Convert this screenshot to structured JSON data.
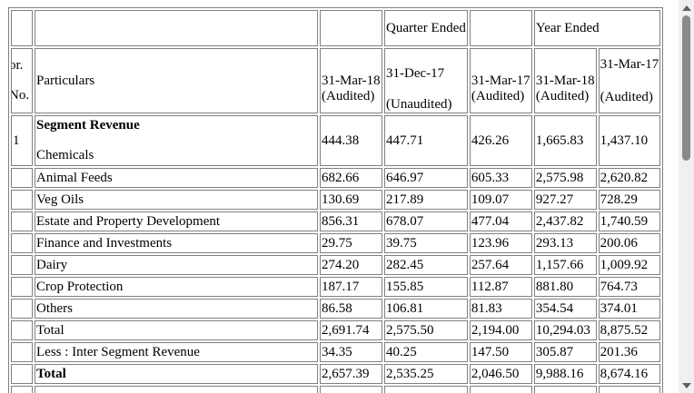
{
  "header": {
    "quarter_ended": "Quarter Ended",
    "year_ended": "Year Ended",
    "srno": [
      "or.",
      "No."
    ],
    "particulars": "Particulars",
    "columns": [
      {
        "date": "31-Mar-18",
        "status": "(Audited)"
      },
      {
        "date": "31-Dec-17",
        "status": "(Unaudited)"
      },
      {
        "date": "31-Mar-17",
        "status": "(Audited)"
      },
      {
        "date": "31-Mar-18",
        "status": "(Audited)"
      },
      {
        "date": "31-Mar-17",
        "status": "(Audited)"
      }
    ]
  },
  "section": {
    "number": "1",
    "title": "Segment Revenue"
  },
  "rows": [
    {
      "label": "Chemicals",
      "values": [
        "444.38",
        "447.71",
        "426.26",
        "1,665.83",
        "1,437.10"
      ]
    },
    {
      "label": "Animal Feeds",
      "values": [
        "682.66",
        "646.97",
        "605.33",
        "2,575.98",
        "2,620.82"
      ]
    },
    {
      "label": "Veg Oils",
      "values": [
        "130.69",
        "217.89",
        "109.07",
        "927.27",
        "728.29"
      ]
    },
    {
      "label": "Estate and Property Development",
      "values": [
        "856.31",
        "678.07",
        "477.04",
        "2,437.82",
        "1,740.59"
      ]
    },
    {
      "label": "Finance and Investments",
      "values": [
        "29.75",
        "39.75",
        "123.96",
        "293.13",
        "200.06"
      ]
    },
    {
      "label": "Dairy",
      "values": [
        "274.20",
        "282.45",
        "257.64",
        "1,157.66",
        "1,009.92"
      ]
    },
    {
      "label": "Crop Protection",
      "values": [
        "187.17",
        "155.85",
        "112.87",
        "881.80",
        "764.73"
      ]
    },
    {
      "label": "Others",
      "values": [
        "86.58",
        "106.81",
        "81.83",
        "354.54",
        "374.01"
      ]
    },
    {
      "label": "Total",
      "values": [
        "2,691.74",
        "2,575.50",
        "2,194.00",
        "10,294.03",
        "8,875.52"
      ]
    },
    {
      "label": "Less : Inter Segment Revenue",
      "values": [
        "34.35",
        "40.25",
        "147.50",
        "305.87",
        "201.36"
      ]
    },
    {
      "label": "Total",
      "bold": true,
      "values": [
        "2,657.39",
        "2,535.25",
        "2,046.50",
        "9,988.16",
        "8,674.16"
      ]
    }
  ]
}
